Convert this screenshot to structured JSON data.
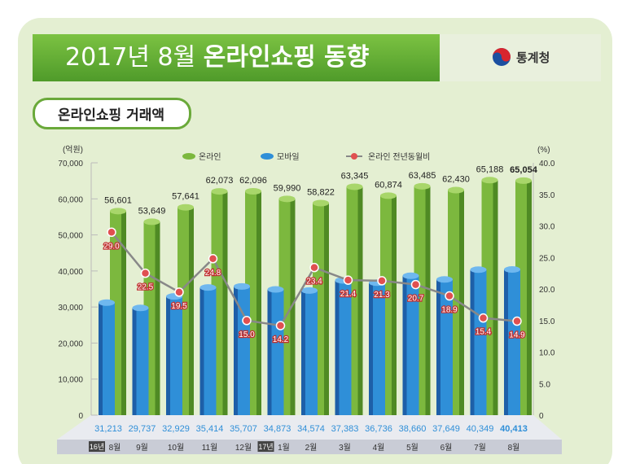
{
  "header": {
    "title_prefix": "2017년 8월",
    "title_main": "온라인쇼핑 동향",
    "logo_text": "통계청"
  },
  "subtitle": "온라인쇼핑 거래액",
  "chart_data": {
    "type": "bar",
    "categories": [
      "8월",
      "9월",
      "10월",
      "11월",
      "12월",
      "1월",
      "2월",
      "3월",
      "4월",
      "5월",
      "6월",
      "7월",
      "8월"
    ],
    "year_badges": {
      "0": "16년",
      "5": "17년"
    },
    "left_unit": "(억원)",
    "right_unit": "(%)",
    "ylim": [
      0,
      70000
    ],
    "y2lim": [
      0,
      40
    ],
    "yticks": [
      "0",
      "10,000",
      "20,000",
      "30,000",
      "40,000",
      "50,000",
      "60,000",
      "70,000"
    ],
    "y2ticks": [
      "0",
      "5.0",
      "10.0",
      "15.0",
      "20.0",
      "25.0",
      "30.0",
      "35.0",
      "40.0"
    ],
    "legend": [
      "온라인",
      "모바일",
      "온라인 전년동월비"
    ],
    "series": [
      {
        "name": "온라인",
        "type": "bar",
        "color": "#7cb83e",
        "values": [
          56601,
          53649,
          57641,
          62073,
          62096,
          59990,
          58822,
          63345,
          60874,
          63485,
          62430,
          65188,
          65054
        ],
        "labels": [
          "56,601",
          "53,649",
          "57,641",
          "62,073",
          "62,096",
          "59,990",
          "58,822",
          "63,345",
          "60,874",
          "63,485",
          "62,430",
          "65,188",
          "65,054"
        ]
      },
      {
        "name": "모바일",
        "type": "bar",
        "color": "#2f8fd8",
        "values": [
          31213,
          29737,
          32929,
          35414,
          35707,
          34873,
          34574,
          37383,
          36736,
          38660,
          37649,
          40349,
          40413
        ],
        "labels": [
          "31,213",
          "29,737",
          "32,929",
          "35,414",
          "35,707",
          "34,873",
          "34,574",
          "37,383",
          "36,736",
          "38,660",
          "37,649",
          "40,349",
          "40,413"
        ]
      },
      {
        "name": "온라인 전년동월비",
        "type": "line",
        "axis": "right",
        "color": "#e05050",
        "values": [
          29.0,
          22.5,
          19.5,
          24.8,
          15.0,
          14.2,
          23.4,
          21.4,
          21.3,
          20.7,
          18.9,
          15.4,
          14.9
        ],
        "labels": [
          "29.0",
          "22.5",
          "19.5",
          "24.8",
          "15.0",
          "14.2",
          "23.4",
          "21.4",
          "21.3",
          "20.7",
          "18.9",
          "15.4",
          "14.9"
        ]
      }
    ]
  }
}
